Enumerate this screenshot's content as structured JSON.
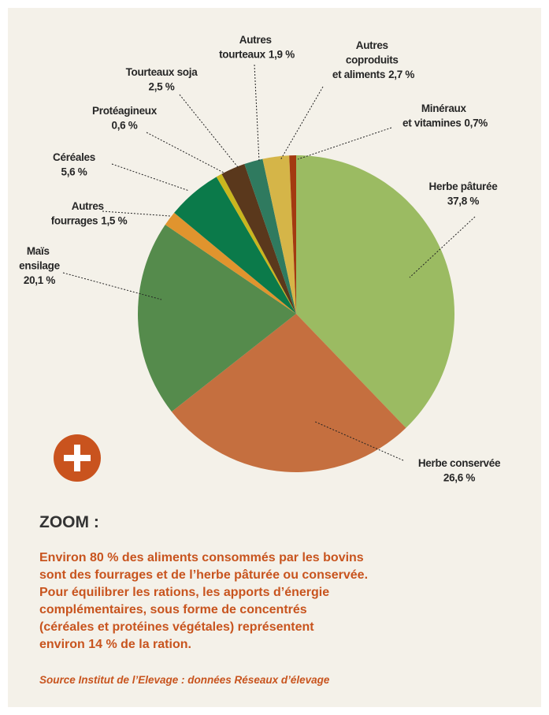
{
  "chart_data": {
    "type": "pie",
    "categories": [
      "Herbe pâturée",
      "Herbe conservée",
      "Maïs ensilage",
      "Autres fourrages",
      "Céréales",
      "Protéagineux",
      "Tourteaux soja",
      "Autres tourteaux",
      "Autres coproduits et aliments",
      "Minéraux et vitamines"
    ],
    "values": [
      37.8,
      26.6,
      20.1,
      1.5,
      5.6,
      0.6,
      2.5,
      1.9,
      2.7,
      0.7
    ],
    "value_labels": [
      "37,8 %",
      "26,6 %",
      "20,1 %",
      "1,5 %",
      "5,6 %",
      "0,6 %",
      "2,5 %",
      "1,9 %",
      "2,7 %",
      "0,7%"
    ],
    "colors": [
      "#9bbb62",
      "#c56f3f",
      "#558b4c",
      "#e0942e",
      "#0b7a4a",
      "#c9b61e",
      "#5a381c",
      "#2f7a5f",
      "#d5b548",
      "#a33a10"
    ]
  },
  "zoom": {
    "title": "ZOOM :",
    "lines": [
      "Environ 80 % des aliments consommés par les bovins",
      "sont des fourrages et de l’herbe pâturée ou conservée.",
      "Pour équilibrer les rations, les apports d’énergie",
      "complémentaires, sous forme de concentrés",
      "(céréales et protéines végétales) représentent",
      "environ 14 % de la ration."
    ]
  },
  "source": "Source Institut de l’Elevage : données Réseaux d’élevage"
}
